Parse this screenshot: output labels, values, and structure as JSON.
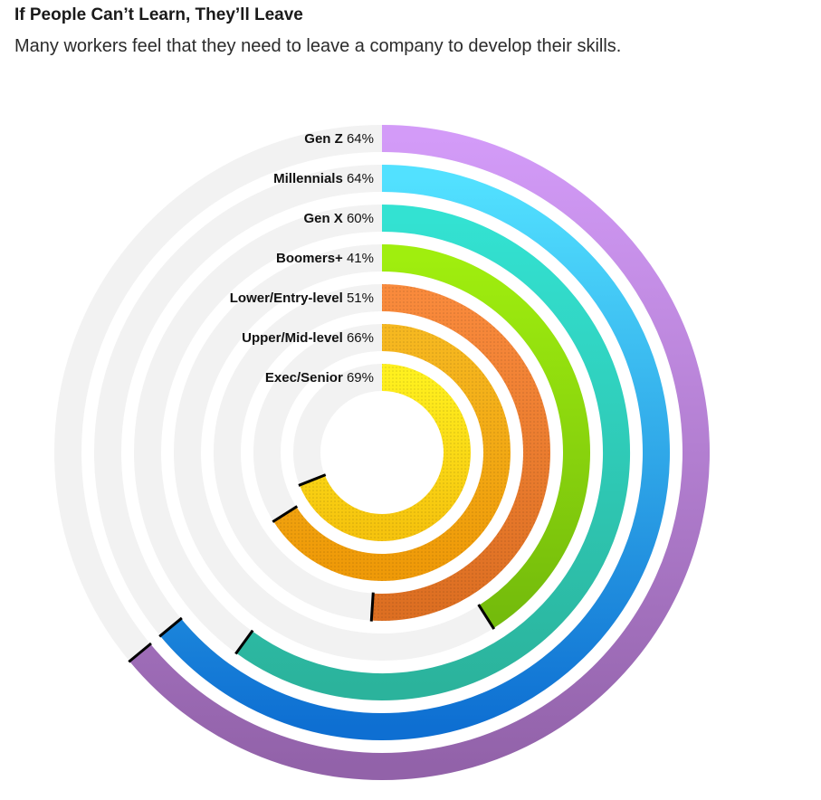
{
  "header": {
    "title": "If People Can’t Learn, They’ll Leave",
    "subtitle": "Many workers feel that they need to leave a company to develop their skills."
  },
  "chart_data": {
    "type": "radial-bar",
    "title": "If People Can’t Learn, They’ll Leave",
    "subtitle": "Many workers feel that they need to leave a company to develop their skills.",
    "max": 100,
    "unit": "%",
    "series": [
      {
        "name": "Gen Z",
        "value": 64,
        "label": "64%",
        "colors": [
          "#d39bf8",
          "#9262a9"
        ]
      },
      {
        "name": "Millennials",
        "value": 64,
        "label": "64%",
        "colors": [
          "#52e1ff",
          "#0e6fd2"
        ]
      },
      {
        "name": "Gen X",
        "value": 60,
        "label": "60%",
        "colors": [
          "#33e2d2",
          "#2bb39c"
        ]
      },
      {
        "name": "Boomers+",
        "value": 41,
        "label": "41%",
        "colors": [
          "#a0ee0e",
          "#74bb0c"
        ]
      },
      {
        "name": "Lower/Entry-level",
        "value": 51,
        "label": "51%",
        "colors": [
          "#f98a3c",
          "#dd6f22"
        ]
      },
      {
        "name": "Upper/Mid-level",
        "value": 66,
        "label": "66%",
        "colors": [
          "#f6b820",
          "#ef9a08"
        ]
      },
      {
        "name": "Exec/Senior",
        "value": 69,
        "label": "69%",
        "colors": [
          "#fff01e",
          "#f6c40e"
        ]
      }
    ],
    "track_color": "#f2f2f2"
  }
}
